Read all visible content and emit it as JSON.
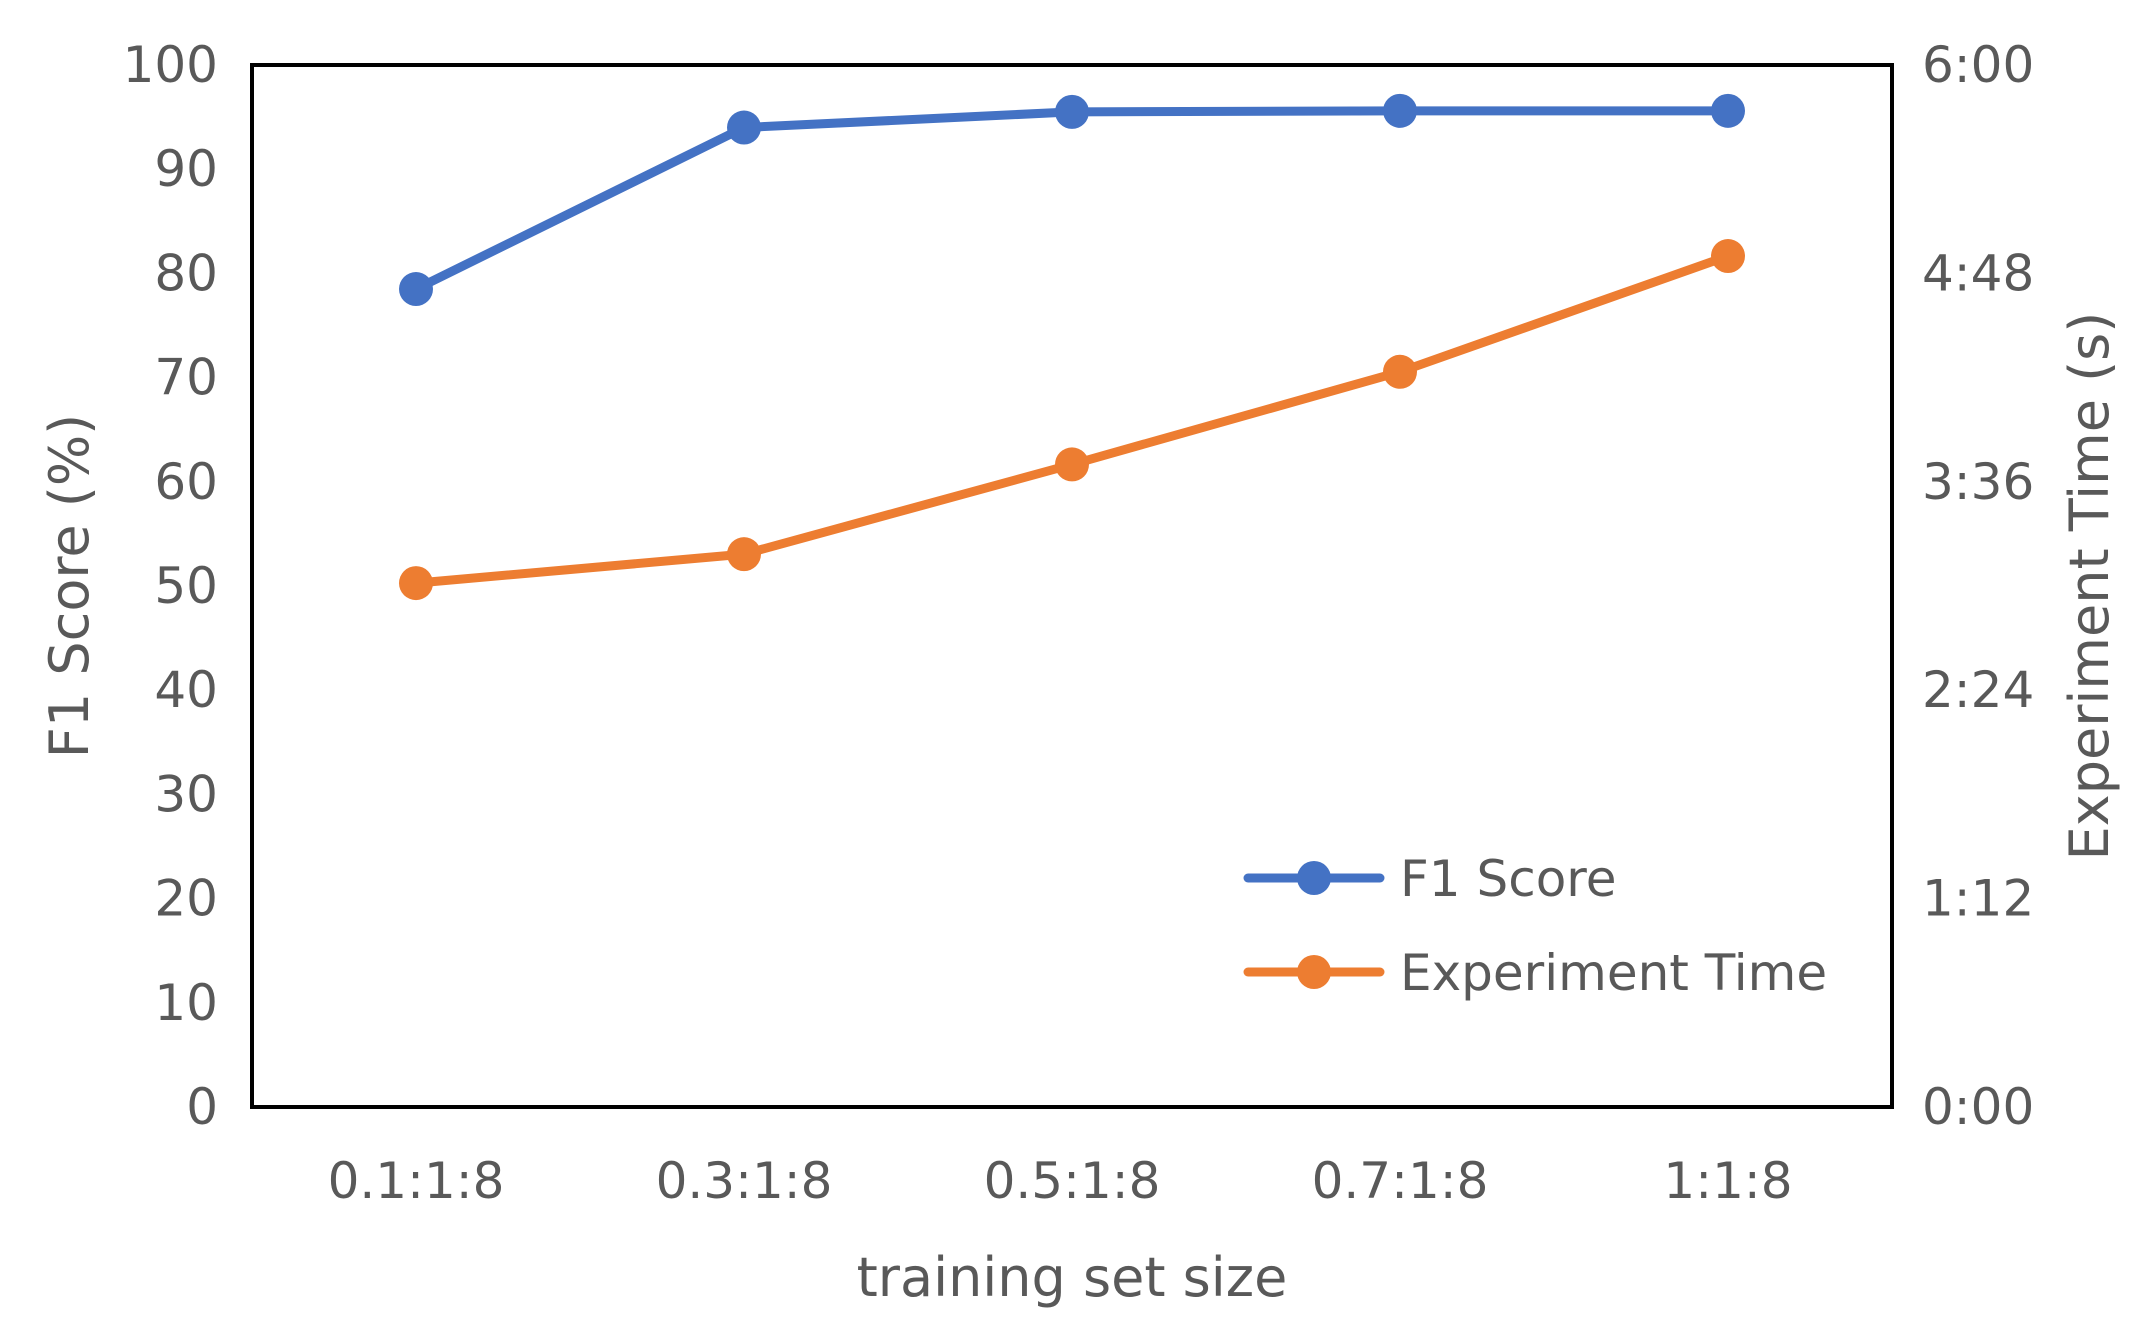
{
  "chart_data": {
    "type": "line",
    "title": "",
    "xlabel": "training set size",
    "ylabel": "F1 Score (%)",
    "y2label": "Experiment Time  (s)",
    "categories": [
      "0.1:1:8",
      "0.3:1:8",
      "0.5:1:8",
      "0.7:1:8",
      "1:1:8"
    ],
    "ylim": [
      0,
      100
    ],
    "yticks": [
      "0",
      "10",
      "20",
      "30",
      "40",
      "50",
      "60",
      "70",
      "80",
      "90",
      "100"
    ],
    "y2lim_seconds": [
      0,
      360
    ],
    "y2ticks": [
      "0:00",
      "1:12",
      "2:24",
      "3:36",
      "4:48",
      "6:00"
    ],
    "legend_position": "bottom-right",
    "grid": false,
    "series": [
      {
        "name": "F1 Score",
        "axis": "left",
        "color": "#4472C4",
        "values": [
          78.5,
          94,
          95.5,
          95.6,
          95.6
        ]
      },
      {
        "name": "Experiment Time",
        "axis": "right",
        "color": "#ED7D31",
        "values_seconds": [
          181,
          191,
          222,
          254,
          294
        ]
      }
    ]
  }
}
